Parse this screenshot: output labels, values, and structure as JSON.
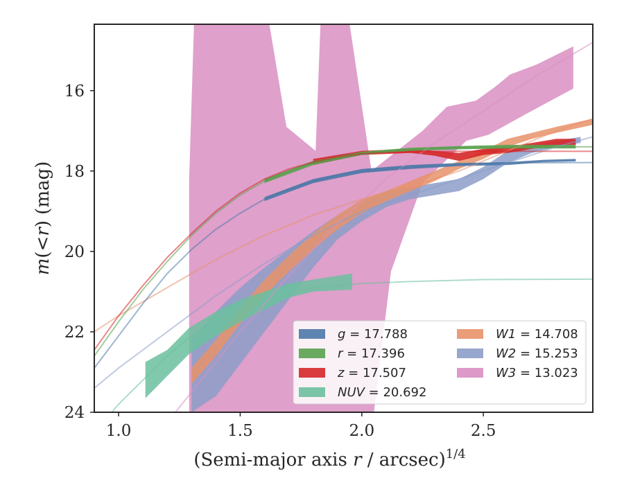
{
  "chart_data": {
    "type": "area",
    "xlabel_parts": [
      "(Semi-major axis ",
      "r",
      " / arcsec)",
      "1/4"
    ],
    "ylabel_parts": [
      "m",
      "(<",
      "r",
      ") (mag)"
    ],
    "xlim": [
      0.9,
      2.95
    ],
    "ylim": [
      24.0,
      14.35
    ],
    "x_ticks": [
      1.0,
      1.5,
      2.0,
      2.5
    ],
    "x_tick_labels": [
      "1.0",
      "1.5",
      "2.0",
      "2.5"
    ],
    "y_ticks": [
      16,
      18,
      20,
      22,
      24
    ],
    "y_tick_labels": [
      "16",
      "18",
      "20",
      "22",
      "24"
    ],
    "y_inverted": true,
    "legend_position": "lower-right",
    "colors": {
      "g": "#4c78a8",
      "r": "#59a14f",
      "z": "#d62728",
      "NUV": "#6bbf9f",
      "W1": "#e8926a",
      "W2": "#8c9dc8",
      "W3": "#d98fc2"
    },
    "legend": [
      {
        "key": "g",
        "var": "g",
        "value": "17.788"
      },
      {
        "key": "W1",
        "var": "W1",
        "value": "14.708"
      },
      {
        "key": "r",
        "var": "r",
        "value": "17.396"
      },
      {
        "key": "W2",
        "var": "W2",
        "value": "15.253"
      },
      {
        "key": "z",
        "var": "z",
        "value": "17.507"
      },
      {
        "key": "W3",
        "var": "W3",
        "value": "13.023"
      },
      {
        "key": "NUV",
        "var": "NUV",
        "value": "20.692"
      }
    ],
    "models": [
      {
        "key": "NUV",
        "x": [
          0.9,
          1.0,
          1.1,
          1.2,
          1.3,
          1.4,
          1.5,
          1.6,
          1.8,
          2.0,
          2.2,
          2.5,
          2.95
        ],
        "y": [
          24.5,
          23.8,
          23.2,
          22.6,
          22.1,
          21.7,
          21.4,
          21.2,
          20.9,
          20.8,
          20.75,
          20.7,
          20.69
        ]
      },
      {
        "key": "W2",
        "x": [
          0.9,
          1.0,
          1.2,
          1.4,
          1.6,
          1.8,
          2.0,
          2.2,
          2.4,
          2.6,
          2.8,
          2.95
        ],
        "y": [
          23.4,
          22.9,
          22.0,
          21.1,
          20.3,
          19.6,
          19.0,
          18.6,
          18.2,
          17.8,
          17.4,
          17.15
        ]
      },
      {
        "key": "W1",
        "x": [
          0.9,
          1.0,
          1.2,
          1.4,
          1.6,
          1.8,
          2.0,
          2.2,
          2.4,
          2.6,
          2.8,
          2.95
        ],
        "y": [
          22.0,
          21.6,
          20.9,
          20.2,
          19.6,
          19.1,
          18.7,
          18.4,
          18.0,
          17.5,
          17.0,
          16.7
        ]
      },
      {
        "key": "W3",
        "x": [
          1.1,
          1.3,
          1.5,
          1.7,
          1.9,
          2.1,
          2.3,
          2.5,
          2.7,
          2.95
        ],
        "y": [
          25.0,
          23.5,
          22.0,
          20.6,
          19.3,
          18.2,
          17.3,
          16.5,
          15.7,
          14.8
        ]
      },
      {
        "key": "g",
        "x": [
          0.9,
          1.0,
          1.1,
          1.2,
          1.3,
          1.4,
          1.5,
          1.6,
          1.7,
          1.8,
          1.9,
          2.0,
          2.2,
          2.4,
          2.6,
          2.95
        ],
        "y": [
          22.9,
          22.1,
          21.3,
          20.55,
          19.95,
          19.45,
          19.05,
          18.7,
          18.45,
          18.25,
          18.1,
          18.0,
          17.9,
          17.83,
          17.8,
          17.79
        ]
      },
      {
        "key": "r",
        "x": [
          0.9,
          1.0,
          1.1,
          1.2,
          1.3,
          1.4,
          1.5,
          1.6,
          1.7,
          1.8,
          1.9,
          2.0,
          2.2,
          2.4,
          2.6,
          2.95
        ],
        "y": [
          22.6,
          21.75,
          20.95,
          20.25,
          19.6,
          19.05,
          18.6,
          18.25,
          18.0,
          17.8,
          17.65,
          17.55,
          17.45,
          17.42,
          17.4,
          17.4
        ]
      },
      {
        "key": "z",
        "x": [
          0.9,
          1.0,
          1.1,
          1.2,
          1.3,
          1.4,
          1.5,
          1.6,
          1.7,
          1.8,
          1.9,
          2.0,
          2.2,
          2.4,
          2.6,
          2.95
        ],
        "y": [
          22.45,
          21.6,
          20.85,
          20.15,
          19.55,
          19.0,
          18.55,
          18.2,
          17.95,
          17.78,
          17.65,
          17.57,
          17.52,
          17.51,
          17.51,
          17.51
        ]
      }
    ],
    "bands": [
      {
        "key": "W3",
        "upper": [
          [
            1.29,
            14.35
          ],
          [
            1.31,
            14.35
          ],
          [
            1.32,
            14.35
          ],
          [
            1.62,
            14.35
          ],
          [
            1.69,
            14.35
          ],
          [
            1.81,
            14.35
          ],
          [
            1.83,
            14.35
          ],
          [
            1.95,
            14.35
          ],
          [
            2.25,
            14.35
          ],
          [
            2.43,
            14.35
          ],
          [
            2.52,
            14.35
          ],
          [
            2.67,
            14.35
          ],
          [
            2.87,
            14.35
          ]
        ],
        "lower": [
          [
            1.29,
            24.0
          ],
          [
            1.31,
            24.0
          ],
          [
            1.32,
            24.0
          ],
          [
            1.62,
            24.0
          ],
          [
            1.69,
            24.0
          ],
          [
            1.81,
            24.0
          ],
          [
            1.83,
            24.0
          ],
          [
            1.95,
            24.0
          ],
          [
            2.05,
            24.0
          ],
          [
            2.12,
            20.5
          ],
          [
            2.25,
            18.3
          ],
          [
            2.43,
            17.25
          ],
          [
            2.52,
            17.1
          ],
          [
            2.67,
            16.6
          ],
          [
            2.87,
            15.95
          ]
        ],
        "upper_override": [
          [
            1.29,
            18.2
          ],
          [
            1.31,
            14.35
          ],
          [
            1.62,
            14.35
          ],
          [
            1.69,
            16.9
          ],
          [
            1.81,
            17.5
          ],
          [
            1.83,
            14.35
          ],
          [
            1.95,
            14.35
          ],
          [
            2.04,
            18.0
          ],
          [
            2.25,
            17.0
          ],
          [
            2.35,
            16.4
          ],
          [
            2.47,
            16.25
          ],
          [
            2.55,
            15.9
          ],
          [
            2.61,
            15.6
          ],
          [
            2.72,
            15.35
          ],
          [
            2.87,
            14.9
          ]
        ]
      },
      {
        "key": "W2",
        "upper": [
          [
            1.3,
            22.2
          ],
          [
            1.4,
            21.5
          ],
          [
            1.5,
            20.9
          ],
          [
            1.6,
            20.4
          ],
          [
            1.7,
            19.95
          ],
          [
            1.8,
            19.5
          ],
          [
            1.9,
            19.1
          ],
          [
            2.0,
            18.75
          ],
          [
            2.1,
            18.5
          ],
          [
            2.2,
            18.4
          ],
          [
            2.3,
            18.3
          ],
          [
            2.4,
            18.2
          ],
          [
            2.5,
            17.9
          ],
          [
            2.6,
            17.5
          ],
          [
            2.7,
            17.35
          ],
          [
            2.8,
            17.25
          ],
          [
            2.9,
            17.15
          ]
        ],
        "lower": [
          [
            1.3,
            24.0
          ],
          [
            1.4,
            23.6
          ],
          [
            1.5,
            22.8
          ],
          [
            1.6,
            22.0
          ],
          [
            1.7,
            21.2
          ],
          [
            1.8,
            20.4
          ],
          [
            1.9,
            19.7
          ],
          [
            2.0,
            19.25
          ],
          [
            2.1,
            18.9
          ],
          [
            2.2,
            18.7
          ],
          [
            2.3,
            18.6
          ],
          [
            2.4,
            18.5
          ],
          [
            2.5,
            18.2
          ],
          [
            2.6,
            17.8
          ],
          [
            2.7,
            17.55
          ],
          [
            2.8,
            17.4
          ],
          [
            2.9,
            17.3
          ]
        ]
      },
      {
        "key": "W1",
        "upper": [
          [
            1.3,
            22.9
          ],
          [
            1.4,
            22.2
          ],
          [
            1.5,
            21.4
          ],
          [
            1.6,
            20.7
          ],
          [
            1.7,
            20.1
          ],
          [
            1.8,
            19.55
          ],
          [
            1.9,
            19.1
          ],
          [
            2.0,
            18.7
          ],
          [
            2.1,
            18.5
          ],
          [
            2.2,
            18.25
          ],
          [
            2.3,
            18.0
          ],
          [
            2.4,
            17.75
          ],
          [
            2.5,
            17.5
          ],
          [
            2.6,
            17.2
          ],
          [
            2.7,
            17.05
          ],
          [
            2.8,
            16.9
          ],
          [
            2.95,
            16.7
          ]
        ],
        "lower": [
          [
            1.3,
            23.3
          ],
          [
            1.4,
            22.6
          ],
          [
            1.5,
            21.8
          ],
          [
            1.6,
            21.1
          ],
          [
            1.7,
            20.5
          ],
          [
            1.8,
            19.95
          ],
          [
            1.9,
            19.45
          ],
          [
            2.0,
            19.05
          ],
          [
            2.1,
            18.75
          ],
          [
            2.2,
            18.5
          ],
          [
            2.3,
            18.25
          ],
          [
            2.4,
            17.95
          ],
          [
            2.5,
            17.7
          ],
          [
            2.6,
            17.4
          ],
          [
            2.7,
            17.2
          ],
          [
            2.8,
            17.05
          ],
          [
            2.95,
            16.85
          ]
        ]
      },
      {
        "key": "NUV",
        "upper": [
          [
            1.11,
            22.75
          ],
          [
            1.2,
            22.45
          ],
          [
            1.29,
            21.9
          ],
          [
            1.4,
            21.5
          ],
          [
            1.5,
            21.2
          ],
          [
            1.6,
            21.0
          ],
          [
            1.7,
            20.8
          ],
          [
            1.8,
            20.7
          ],
          [
            1.96,
            20.55
          ]
        ],
        "lower": [
          [
            1.11,
            23.65
          ],
          [
            1.2,
            23.1
          ],
          [
            1.29,
            22.55
          ],
          [
            1.4,
            22.1
          ],
          [
            1.5,
            21.75
          ],
          [
            1.6,
            21.45
          ],
          [
            1.7,
            21.15
          ],
          [
            1.8,
            21.0
          ],
          [
            1.96,
            20.95
          ]
        ]
      },
      {
        "key": "z",
        "upper": [
          [
            1.8,
            17.7
          ],
          [
            2.0,
            17.5
          ],
          [
            2.2,
            17.45
          ],
          [
            2.3,
            17.5
          ],
          [
            2.4,
            17.55
          ],
          [
            2.5,
            17.45
          ],
          [
            2.6,
            17.4
          ],
          [
            2.7,
            17.3
          ],
          [
            2.8,
            17.2
          ],
          [
            2.88,
            17.2
          ]
        ],
        "lower": [
          [
            1.8,
            17.85
          ],
          [
            2.0,
            17.6
          ],
          [
            2.2,
            17.55
          ],
          [
            2.3,
            17.62
          ],
          [
            2.4,
            17.75
          ],
          [
            2.5,
            17.6
          ],
          [
            2.6,
            17.55
          ],
          [
            2.7,
            17.45
          ],
          [
            2.8,
            17.35
          ],
          [
            2.88,
            17.35
          ]
        ]
      },
      {
        "key": "g",
        "upper": [
          [
            1.6,
            18.65
          ],
          [
            1.8,
            18.2
          ],
          [
            2.0,
            17.95
          ],
          [
            2.2,
            17.85
          ],
          [
            2.4,
            17.8
          ],
          [
            2.6,
            17.78
          ],
          [
            2.75,
            17.72
          ],
          [
            2.88,
            17.7
          ]
        ],
        "lower": [
          [
            1.6,
            18.75
          ],
          [
            1.8,
            18.3
          ],
          [
            2.0,
            18.05
          ],
          [
            2.2,
            17.95
          ],
          [
            2.4,
            17.88
          ],
          [
            2.6,
            17.85
          ],
          [
            2.75,
            17.78
          ],
          [
            2.88,
            17.76
          ]
        ]
      },
      {
        "key": "r",
        "upper": [
          [
            1.6,
            18.2
          ],
          [
            1.8,
            17.75
          ],
          [
            2.0,
            17.52
          ],
          [
            2.2,
            17.42
          ],
          [
            2.4,
            17.38
          ],
          [
            2.6,
            17.35
          ],
          [
            2.88,
            17.35
          ]
        ],
        "lower": [
          [
            1.6,
            18.3
          ],
          [
            1.8,
            17.85
          ],
          [
            2.0,
            17.6
          ],
          [
            2.2,
            17.5
          ],
          [
            2.4,
            17.46
          ],
          [
            2.6,
            17.44
          ],
          [
            2.88,
            17.44
          ]
        ]
      }
    ]
  }
}
